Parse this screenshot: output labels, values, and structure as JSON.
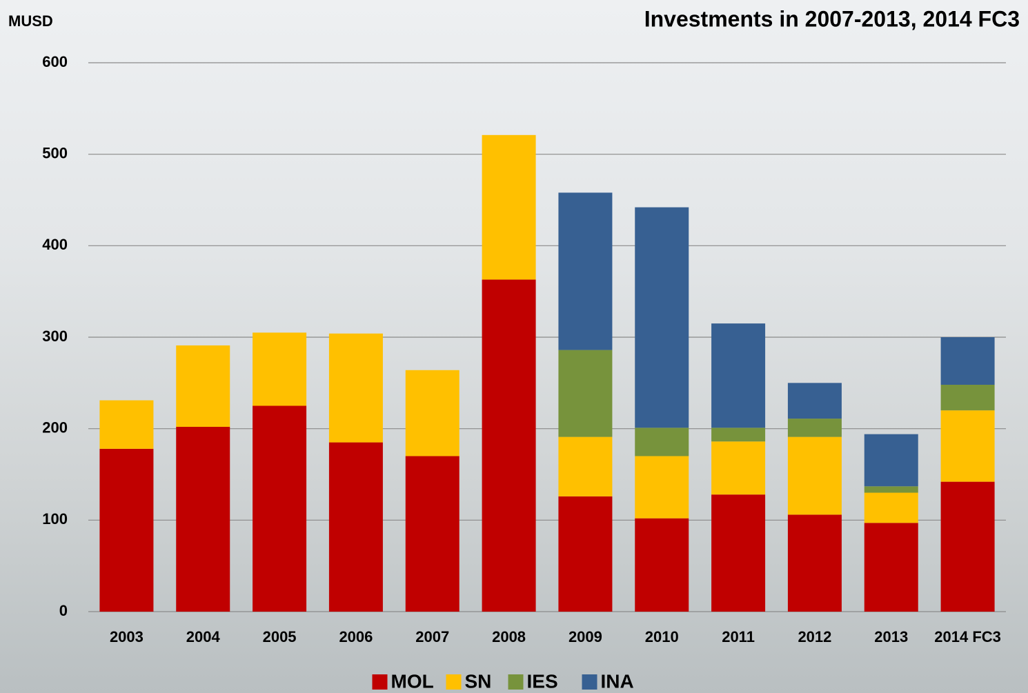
{
  "chart_data": {
    "type": "stacked-bar",
    "title": "Investments in 2007-2013, 2014 FC3",
    "y_label": "MUSD",
    "categories": [
      "2003",
      "2004",
      "2005",
      "2006",
      "2007",
      "2008",
      "2009",
      "2010",
      "2011",
      "2012",
      "2013",
      "2014 FC3"
    ],
    "series": [
      {
        "name": "MOL",
        "color": "#c00000",
        "values": [
          178,
          202,
          225,
          185,
          170,
          363,
          126,
          102,
          128,
          106,
          97,
          142
        ]
      },
      {
        "name": "SN",
        "color": "#ffc000",
        "values": [
          53,
          89,
          80,
          119,
          94,
          158,
          65,
          68,
          58,
          85,
          33,
          78
        ]
      },
      {
        "name": "IES",
        "color": "#77933c",
        "values": [
          null,
          null,
          null,
          null,
          null,
          null,
          95,
          31,
          15,
          20,
          7,
          28
        ]
      },
      {
        "name": "INA",
        "color": "#376092",
        "values": [
          null,
          null,
          null,
          null,
          null,
          null,
          172,
          241,
          114,
          39,
          57,
          52
        ]
      }
    ],
    "ylim": [
      0,
      600
    ],
    "yticks": [
      0,
      100,
      200,
      300,
      400,
      500,
      600
    ],
    "grid": true
  }
}
